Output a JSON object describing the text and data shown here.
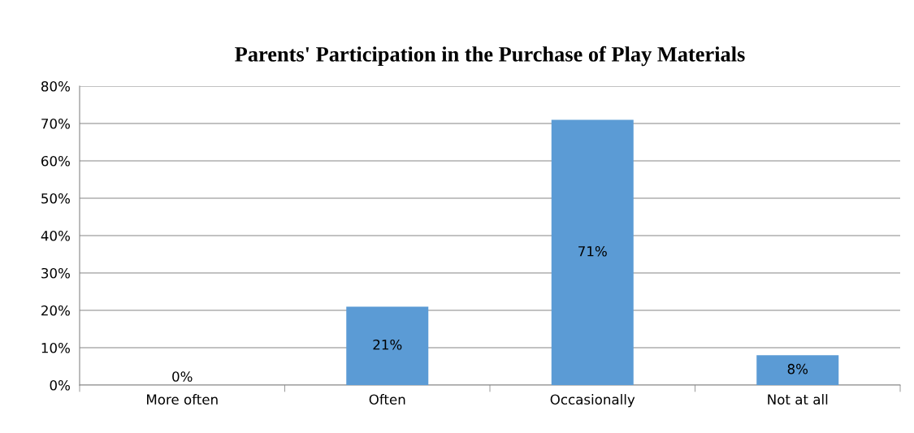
{
  "chart_data": {
    "type": "bar",
    "title": "Parents' Participation in the Purchase of Play Materials",
    "categories": [
      "More often",
      "Often",
      "Occasionally",
      "Not at all"
    ],
    "values": [
      0,
      21,
      71,
      8
    ],
    "value_labels": [
      "0%",
      "21%",
      "71%",
      "8%"
    ],
    "color": "#5b9bd5",
    "ylim": [
      0,
      80
    ],
    "yticks": [
      {
        "value": 0,
        "label": "0%"
      },
      {
        "value": 10,
        "label": "10%"
      },
      {
        "value": 20,
        "label": "20%"
      },
      {
        "value": 30,
        "label": "30%"
      },
      {
        "value": 40,
        "label": "40%"
      },
      {
        "value": 50,
        "label": "50%"
      },
      {
        "value": 60,
        "label": "60%"
      },
      {
        "value": 70,
        "label": "70%"
      },
      {
        "value": 80,
        "label": "80%"
      }
    ],
    "grid": "y",
    "legend": false
  }
}
